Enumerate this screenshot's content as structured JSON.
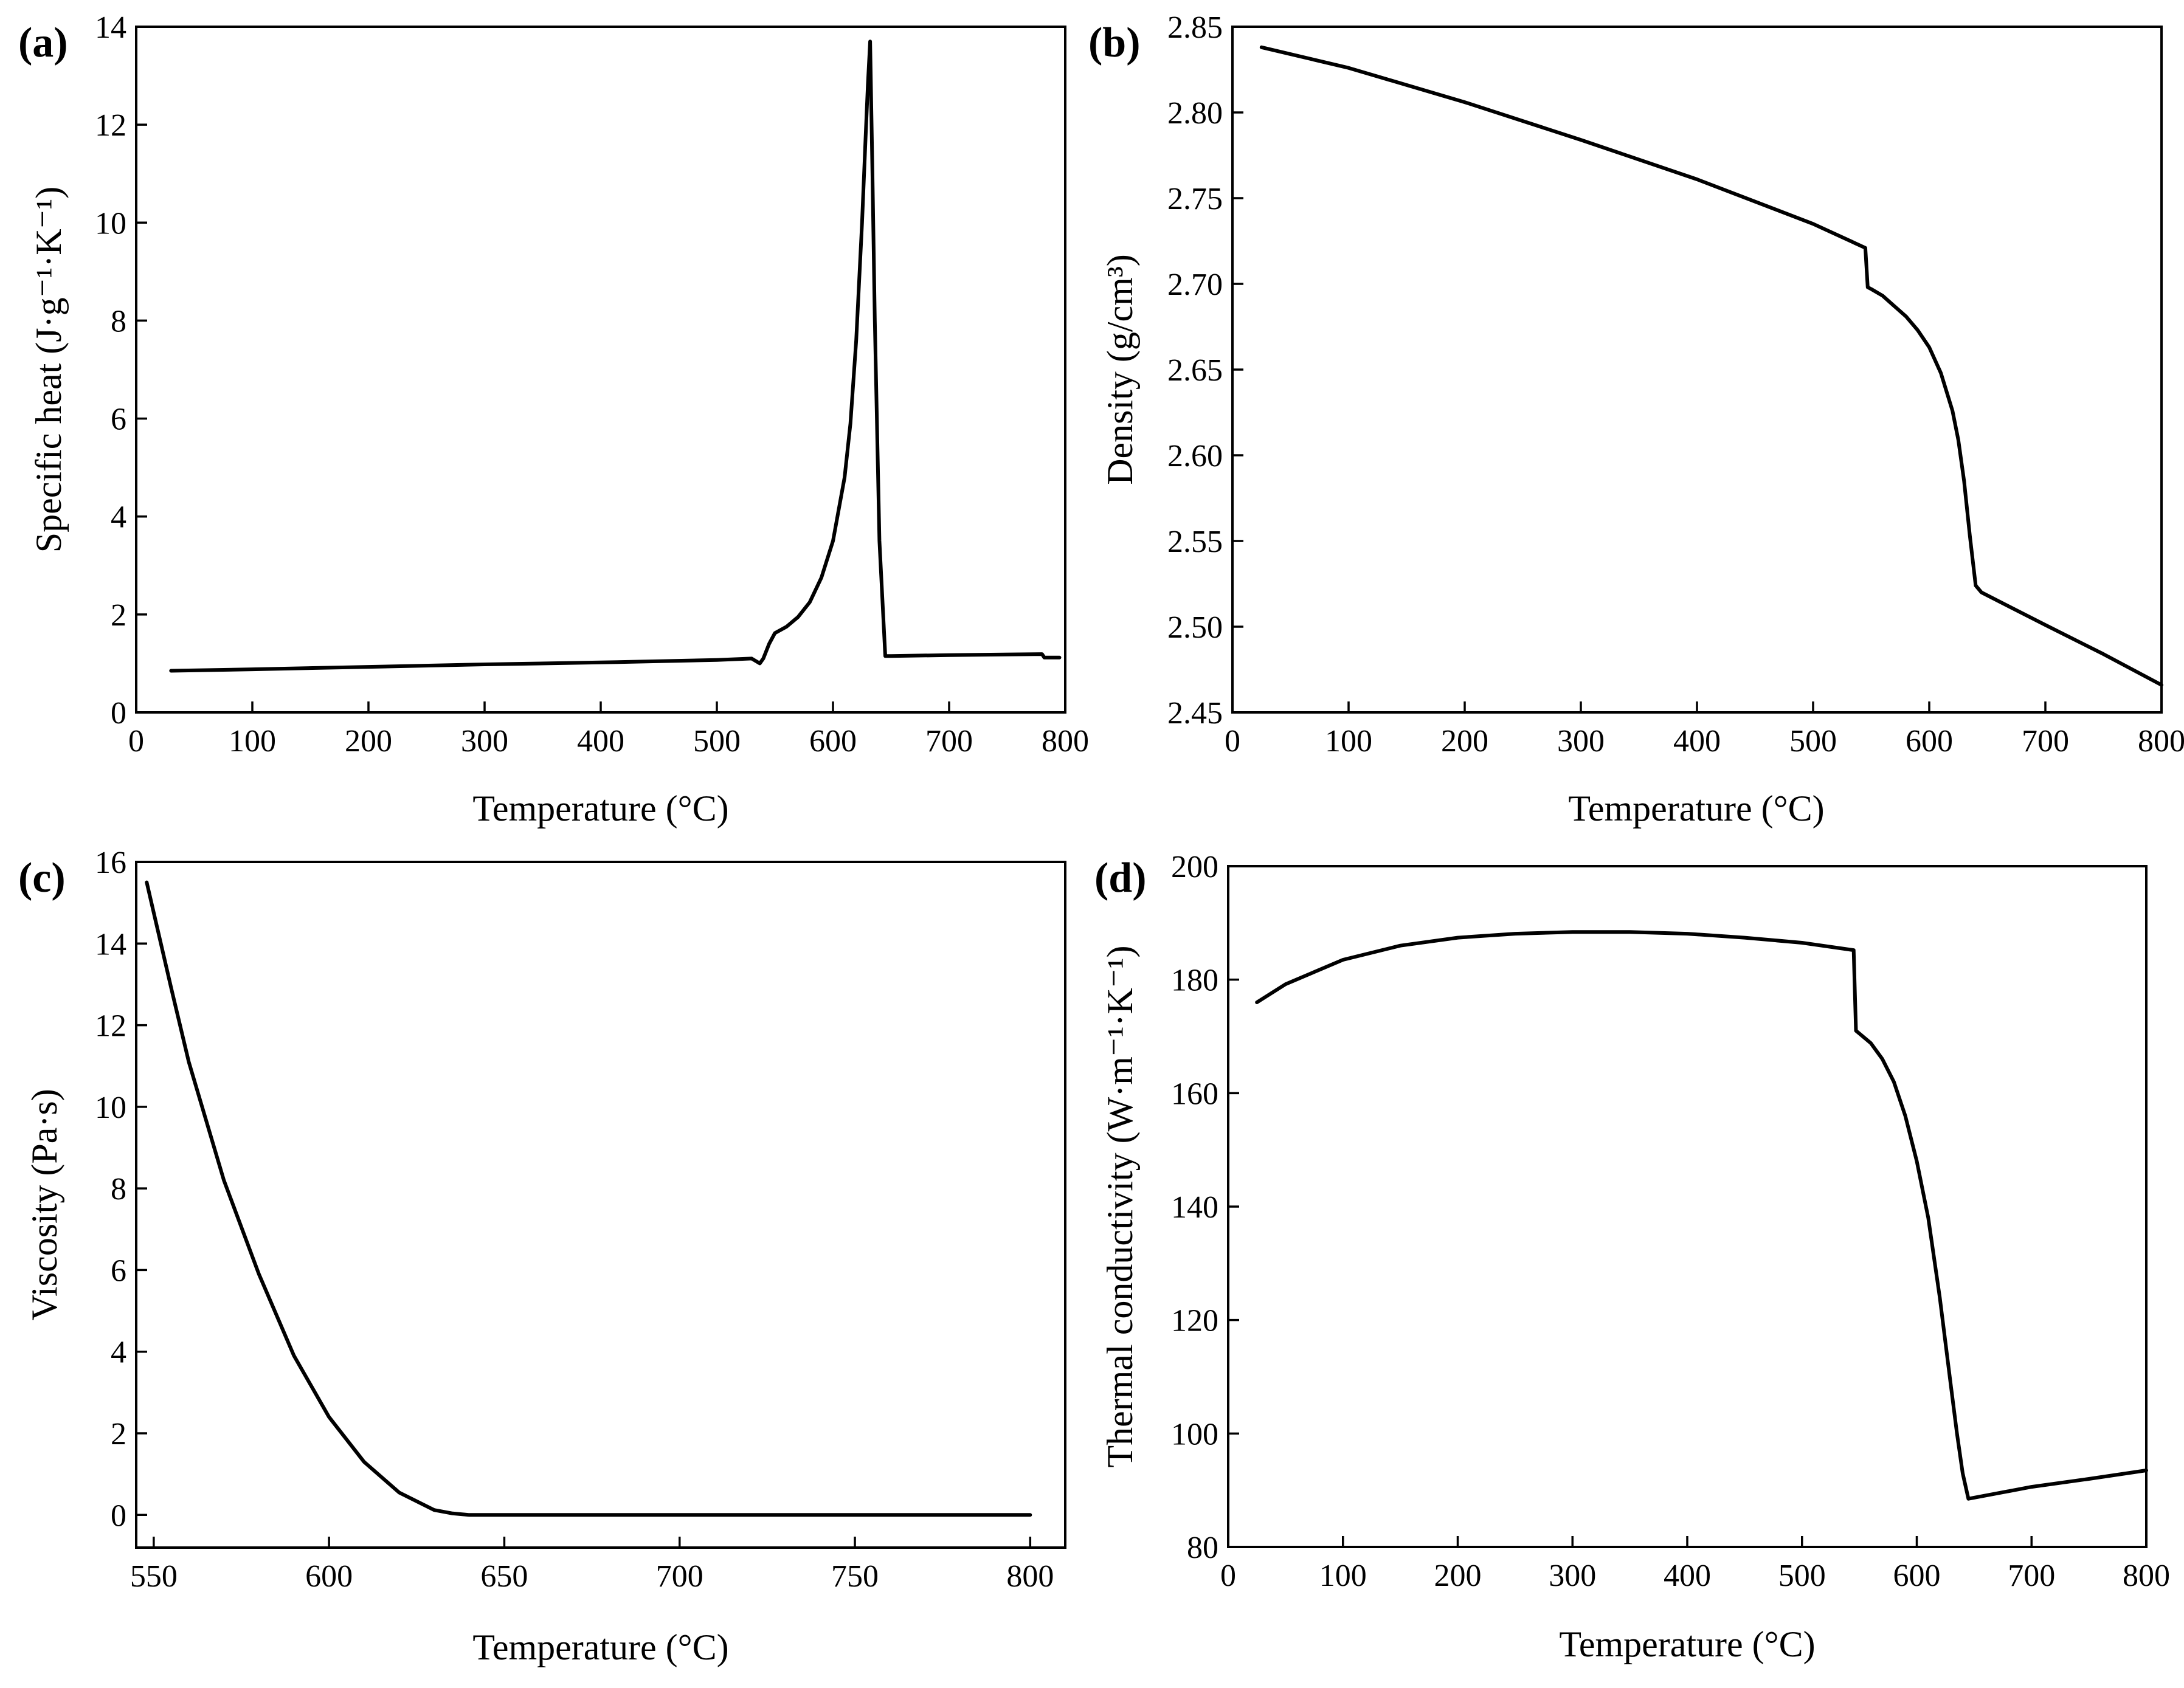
{
  "chart_data": [
    {
      "type": "line",
      "panel_label": "(a)",
      "xlabel": "Temperature (°C)",
      "ylabel": "Specific heat (J·g⁻¹·K⁻¹)",
      "xlim": [
        0,
        800
      ],
      "ylim": [
        0,
        14
      ],
      "xticks": [
        "0",
        "100",
        "200",
        "300",
        "400",
        "500",
        "600",
        "700",
        "800"
      ],
      "yticks": [
        "0",
        "2",
        "4",
        "6",
        "8",
        "10",
        "12",
        "14"
      ],
      "grid": false,
      "legend": "none",
      "series": [
        {
          "name": "Specific heat",
          "x": [
            30,
            100,
            200,
            300,
            400,
            500,
            530,
            537,
            540,
            545,
            550,
            560,
            570,
            580,
            590,
            600,
            610,
            615,
            620,
            625,
            628,
            630,
            632,
            634,
            636,
            640,
            645,
            650,
            700,
            780,
            782,
            795
          ],
          "y": [
            0.85,
            0.88,
            0.93,
            0.98,
            1.02,
            1.07,
            1.1,
            1.0,
            1.1,
            1.4,
            1.62,
            1.75,
            1.95,
            2.25,
            2.75,
            3.5,
            4.8,
            5.9,
            7.6,
            10.0,
            11.7,
            12.8,
            13.7,
            11.0,
            8.0,
            3.5,
            1.15,
            1.15,
            1.17,
            1.19,
            1.12,
            1.12
          ]
        }
      ]
    },
    {
      "type": "line",
      "panel_label": "(b)",
      "xlabel": "Temperature (°C)",
      "ylabel": "Density (g/cm³)",
      "xlim": [
        0,
        800
      ],
      "ylim": [
        2.45,
        2.85
      ],
      "xticks": [
        "0",
        "100",
        "200",
        "300",
        "400",
        "500",
        "600",
        "700",
        "800"
      ],
      "yticks": [
        "2.45",
        "2.50",
        "2.55",
        "2.60",
        "2.65",
        "2.70",
        "2.75",
        "2.80",
        "2.85"
      ],
      "grid": false,
      "legend": "none",
      "series": [
        {
          "name": "Density",
          "x": [
            25,
            100,
            200,
            300,
            400,
            500,
            545,
            547,
            550,
            560,
            570,
            580,
            590,
            600,
            610,
            620,
            625,
            630,
            635,
            640,
            645,
            700,
            750,
            800
          ],
          "y": [
            2.838,
            2.826,
            2.806,
            2.784,
            2.761,
            2.735,
            2.721,
            2.698,
            2.697,
            2.693,
            2.687,
            2.681,
            2.673,
            2.663,
            2.648,
            2.626,
            2.609,
            2.585,
            2.553,
            2.524,
            2.52,
            2.501,
            2.484,
            2.466
          ]
        }
      ]
    },
    {
      "type": "line",
      "panel_label": "(c)",
      "xlabel": "Temperature (°C)",
      "ylabel": "Viscosity (Pa·s)",
      "xlim": [
        545,
        810
      ],
      "ylim": [
        -0.8,
        16
      ],
      "xticks": [
        "550",
        "600",
        "650",
        "700",
        "750",
        "800"
      ],
      "yticks": [
        "0",
        "2",
        "4",
        "6",
        "8",
        "10",
        "12",
        "14",
        "16"
      ],
      "grid": false,
      "legend": "none",
      "series": [
        {
          "name": "Viscosity",
          "x": [
            548,
            555,
            560,
            570,
            580,
            590,
            600,
            610,
            620,
            630,
            635,
            640,
            650,
            700,
            750,
            800
          ],
          "y": [
            15.5,
            12.9,
            11.1,
            8.2,
            5.9,
            3.9,
            2.4,
            1.3,
            0.55,
            0.12,
            0.04,
            0.0,
            0.0,
            0.0,
            0.0,
            0.0
          ]
        }
      ]
    },
    {
      "type": "line",
      "panel_label": "(d)",
      "xlabel": "Temperature (°C)",
      "ylabel": "Thermal conductivity (W·m⁻¹·K⁻¹)",
      "xlim": [
        0,
        800
      ],
      "ylim": [
        80,
        200
      ],
      "xticks": [
        "0",
        "100",
        "200",
        "300",
        "400",
        "500",
        "600",
        "700",
        "800"
      ],
      "yticks": [
        "80",
        "100",
        "120",
        "140",
        "160",
        "180",
        "200"
      ],
      "grid": false,
      "legend": "none",
      "series": [
        {
          "name": "Thermal conductivity",
          "x": [
            25,
            50,
            100,
            150,
            200,
            250,
            300,
            350,
            400,
            450,
            500,
            545,
            547,
            550,
            560,
            570,
            580,
            590,
            600,
            610,
            620,
            630,
            635,
            640,
            645,
            700,
            750,
            800
          ],
          "y": [
            176,
            179.2,
            183.5,
            186,
            187.4,
            188.1,
            188.4,
            188.4,
            188.1,
            187.4,
            186.5,
            185.2,
            171,
            170.5,
            168.8,
            166,
            162,
            156,
            148,
            138,
            124,
            108,
            100,
            93,
            88.5,
            90.6,
            92,
            93.5
          ]
        }
      ]
    }
  ]
}
